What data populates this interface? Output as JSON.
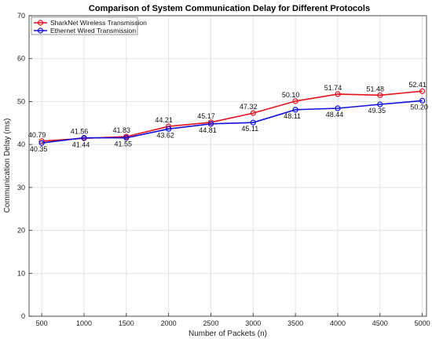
{
  "chart_data": {
    "type": "line",
    "title": "Comparison of System Communication Delay for Different Protocols",
    "xlabel": "Number of Packets (n)",
    "ylabel": "Communication Delay (ms)",
    "x": [
      500,
      1000,
      1500,
      2000,
      2500,
      3000,
      3500,
      4000,
      4500,
      5000
    ],
    "xlim": [
      350,
      5050
    ],
    "ylim": [
      0,
      70
    ],
    "xticks": [
      500,
      1000,
      1500,
      2000,
      2500,
      3000,
      3500,
      4000,
      4500,
      5000
    ],
    "yticks": [
      0,
      10,
      20,
      30,
      40,
      50,
      60,
      70
    ],
    "grid": true,
    "legend_position": "top-left",
    "series": [
      {
        "name": "SharkNet Wireless Transmission",
        "color": "#e8101a",
        "values": [
          40.79,
          41.44,
          41.83,
          44.21,
          45.17,
          47.32,
          50.1,
          51.74,
          51.48,
          52.41
        ],
        "labels": [
          "40.79",
          "41.44",
          "41.83",
          "44.21",
          "45.17",
          "47.32",
          "50.10",
          "51.74",
          "51.48",
          "52.41"
        ]
      },
      {
        "name": "Ethernet Wired Transmission",
        "color": "#1010e0",
        "values": [
          40.35,
          41.56,
          41.55,
          43.62,
          44.81,
          45.11,
          48.11,
          48.44,
          49.35,
          50.2
        ],
        "labels": [
          "40.35",
          "41.56",
          "41.55",
          "43.62",
          "44.81",
          "45.11",
          "48.11",
          "48.44",
          "49.35",
          "50.20"
        ]
      }
    ]
  }
}
